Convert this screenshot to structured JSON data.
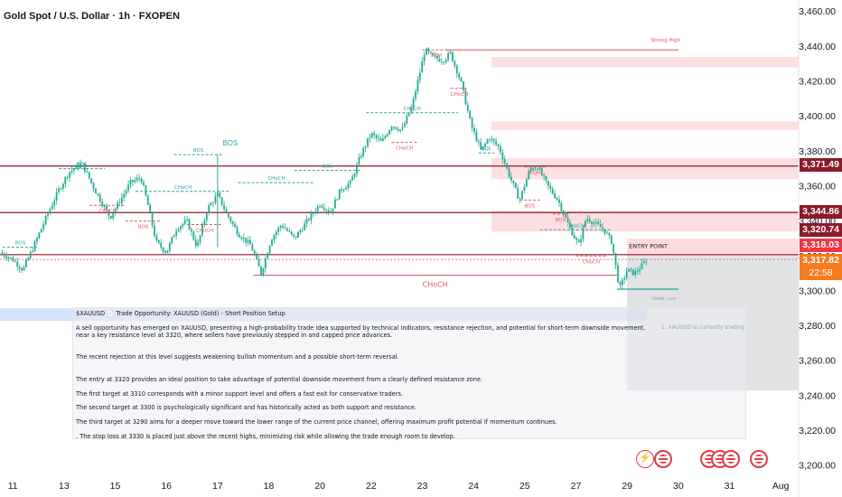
{
  "window": {
    "title": "Gold Spot / U.S. Dollar · 1h · FXOPEN"
  },
  "colors": {
    "up": "#26a69a",
    "down": "#ef5350",
    "candle": "#22ab94",
    "resistance": "#8b1a2b",
    "text": "#131722"
  },
  "price_tags": {
    "level_1": "3,371.49",
    "level_2": "3,344.86",
    "level_3": "3,320.74",
    "level_4": "3,318.03",
    "current": "3,317.82",
    "countdown": "22:58"
  },
  "notes": {
    "header": "$XAUUSD 📄 Trade Opportunity: XAUUSD (Gold) - Short Position Setup",
    "line1": "A sell opportunity has emerged on XAUUSD, presenting a high-probability trade idea supported by technical indicators, resistance rejection, and potential for short-term downside movement.",
    "line2": "near a key resistance level at 3320, where sellers have previously stepped in and capped price advances.",
    "line3": "The recent rejection at this level suggests weakening bullish momentum and a possible short-term reversal.",
    "line4": "The entry at 3320 provides an ideal position to take advantage of potential downside movement from a clearly defined resistance zone.",
    "line5": " The first target at 3310 corresponds with a minor support level and offers a fast exit for conservative traders.",
    "line6": "The second target at 3300 is psychologically significant and has historically acted as both support and resistance.",
    "line7": "The third target at 3290 aims for a deeper move toward the lower range of the current price channel, offering maximum profit potential if momentum continues.",
    "line8": ". The stop loss at 3330 is placed just above the recent highs, minimizing risk while allowing the trade enough room to develop."
  },
  "side_info": {
    "text": "1. XAUUSD is currently trading"
  },
  "event_icons": [
    "bolt-icon",
    "flag-icon",
    "flag-icon",
    "flag-icon",
    "flag-icon",
    "flag-icon"
  ],
  "chart_data": {
    "type": "candlestick",
    "title": "Gold Spot / U.S. Dollar · 1h · FXOPEN",
    "y_ticks": [
      3460,
      3440,
      3420,
      3400,
      3380,
      3360,
      3340,
      3320,
      3300,
      3280,
      3260,
      3240,
      3220,
      3200
    ],
    "y_tick_labels": [
      "3,460.00",
      "3,440.00",
      "3,420.00",
      "3,400.00",
      "3,380.00",
      "3,360.00",
      "3,340.00",
      "3,320.00",
      "3,300.00",
      "3,280.00",
      "3,260.00",
      "3,240.00",
      "3,220.00",
      "3,200.00"
    ],
    "ylim": [
      3198,
      3464
    ],
    "x_labels": [
      "11",
      "13",
      "15",
      "16",
      "17",
      "18",
      "20",
      "22",
      "23",
      "24",
      "25",
      "27",
      "29",
      "30",
      "31",
      "Aug"
    ],
    "x_label_pos": [
      0,
      2,
      4,
      6,
      8,
      10,
      12,
      14,
      16,
      18,
      20,
      22,
      24,
      26,
      28,
      30
    ],
    "xlim": [
      -0.5,
      30.7
    ],
    "close_path": [
      [
        -0.5,
        3322
      ],
      [
        0,
        3318
      ],
      [
        0.4,
        3312
      ],
      [
        0.8,
        3325
      ],
      [
        1.3,
        3342
      ],
      [
        1.8,
        3358
      ],
      [
        2.2,
        3368
      ],
      [
        2.7,
        3373
      ],
      [
        3.2,
        3358
      ],
      [
        3.8,
        3342
      ],
      [
        4.2,
        3352
      ],
      [
        4.6,
        3362
      ],
      [
        5.0,
        3365
      ],
      [
        5.3,
        3348
      ],
      [
        5.6,
        3328
      ],
      [
        6.0,
        3322
      ],
      [
        6.4,
        3336
      ],
      [
        6.8,
        3340
      ],
      [
        7.2,
        3325
      ],
      [
        7.6,
        3347
      ],
      [
        8.0,
        3355
      ],
      [
        8.4,
        3343
      ],
      [
        8.8,
        3333
      ],
      [
        9.3,
        3326
      ],
      [
        9.7,
        3310
      ],
      [
        10.1,
        3330
      ],
      [
        10.5,
        3338
      ],
      [
        11.0,
        3330
      ],
      [
        11.5,
        3340
      ],
      [
        12.0,
        3350
      ],
      [
        12.4,
        3345
      ],
      [
        12.8,
        3358
      ],
      [
        13.2,
        3362
      ],
      [
        13.6,
        3378
      ],
      [
        14.0,
        3390
      ],
      [
        14.4,
        3385
      ],
      [
        14.8,
        3395
      ],
      [
        15.2,
        3392
      ],
      [
        15.6,
        3406
      ],
      [
        15.9,
        3425
      ],
      [
        16.1,
        3438
      ],
      [
        16.4,
        3434
      ],
      [
        16.8,
        3432
      ],
      [
        17.1,
        3436
      ],
      [
        17.5,
        3420
      ],
      [
        17.9,
        3395
      ],
      [
        18.3,
        3380
      ],
      [
        18.6,
        3388
      ],
      [
        19.0,
        3382
      ],
      [
        19.4,
        3366
      ],
      [
        19.8,
        3352
      ],
      [
        20.2,
        3370
      ],
      [
        20.5,
        3371
      ],
      [
        20.9,
        3360
      ],
      [
        21.3,
        3352
      ],
      [
        21.7,
        3338
      ],
      [
        22.1,
        3326
      ],
      [
        22.4,
        3342
      ],
      [
        22.8,
        3338
      ],
      [
        23.1,
        3335
      ],
      [
        23.4,
        3328
      ],
      [
        23.7,
        3301
      ],
      [
        24.0,
        3312
      ],
      [
        24.3,
        3310
      ],
      [
        24.6,
        3315
      ],
      [
        24.8,
        3318
      ]
    ],
    "bos_lines": [
      {
        "label": "BOS",
        "x1": -0.4,
        "x2": 1.0,
        "y": 3325
      },
      {
        "label": "BOS",
        "x1": 1.8,
        "x2": 3.6,
        "y": 3370
      },
      {
        "label": "BOS",
        "x1": 6.3,
        "x2": 8.2,
        "y": 3378
      },
      {
        "label": "BOS",
        "x1": 11.0,
        "x2": 13.6,
        "y": 3369
      },
      {
        "label": "CHoCH",
        "x1": 4.8,
        "x2": 8.5,
        "y": 3357
      },
      {
        "label": "CHoCH",
        "x1": 8.8,
        "x2": 11.8,
        "y": 3362
      },
      {
        "label": "CHoCH",
        "x1": 13.8,
        "x2": 17.4,
        "y": 3402
      },
      {
        "label": "CHoCH",
        "x1": 20.6,
        "x2": 23.4,
        "y": 3335
      },
      {
        "label": "EQL",
        "x1": 18.2,
        "x2": 18.8,
        "y": 3379
      }
    ],
    "choch_red_lines": [
      {
        "label": "CHoCH",
        "x1": 3.0,
        "x2": 4.4,
        "y": 3349
      },
      {
        "label": "BOS",
        "x1": 4.4,
        "x2": 5.8,
        "y": 3340
      },
      {
        "label": "CHoCH",
        "x1": 6.8,
        "x2": 8.2,
        "y": 3338
      },
      {
        "label": "CHoCH",
        "x1": 14.8,
        "x2": 15.8,
        "y": 3385
      },
      {
        "label": "CHoCH",
        "x1": 17.1,
        "x2": 17.8,
        "y": 3416
      },
      {
        "label": "EQH",
        "x1": 20.0,
        "x2": 20.8,
        "y": 3371
      },
      {
        "label": "EQH",
        "x1": 16.0,
        "x2": 17.1,
        "y": 3438
      },
      {
        "label": "BOS",
        "x1": 19.8,
        "x2": 20.6,
        "y": 3352
      },
      {
        "label": "BOS",
        "x1": 21.1,
        "x2": 21.7,
        "y": 3344
      },
      {
        "label": "CHoCH",
        "x1": 22.0,
        "x2": 23.2,
        "y": 3320
      }
    ],
    "choch_main": {
      "label": "CHoCH",
      "x1": 9.4,
      "x2": 23.6,
      "y": 3309
    },
    "bos_main": {
      "label": "BOS",
      "x": 8.0,
      "y_low": 3325,
      "y_high": 3378
    },
    "strong_high": {
      "label": "Strong High",
      "x1": 16.9,
      "x2": 26.0,
      "y": 3438
    },
    "weak_low": {
      "label": "Weak Low",
      "x1": 23.6,
      "x2": 26.0,
      "y": 3301
    },
    "resistance_levels": [
      3371.49,
      3344.86,
      3320.74
    ],
    "entry": {
      "label": "ENTRY POINT",
      "y": 3320,
      "x1": 24.0,
      "x2": 30.7
    },
    "supply_zones": [
      [
        3428,
        3434
      ],
      [
        3392,
        3397
      ],
      [
        3364,
        3376
      ],
      [
        3334,
        3346
      ]
    ],
    "short_box": {
      "entry": 3320,
      "stop": 3330,
      "target": 3243,
      "x1": 24.0,
      "x2": 30.7
    }
  }
}
